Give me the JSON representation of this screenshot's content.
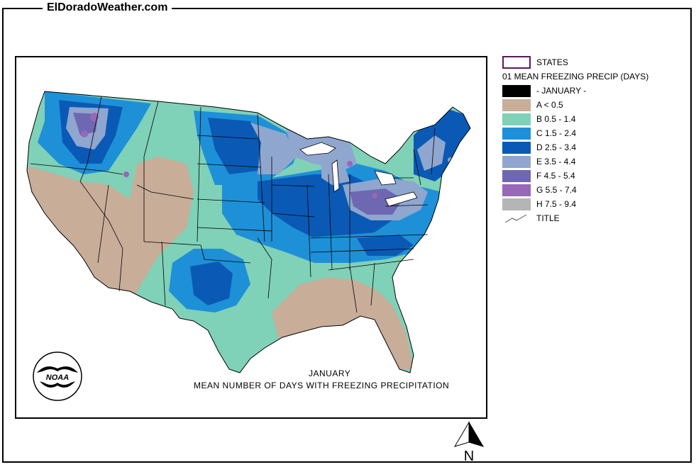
{
  "site": {
    "title": "ElDoradoWeather.com"
  },
  "map": {
    "caption_month": "JANUARY",
    "caption_title": "MEAN NUMBER OF DAYS WITH FREEZING PRECIPITATION",
    "logo_text": "NOAA"
  },
  "legend": {
    "states_label": "STATES",
    "heading": "01 MEAN FREEZING PRECIP (DAYS)",
    "items": [
      {
        "label": "- JANUARY -",
        "color": "#000000"
      },
      {
        "label": "A < 0.5",
        "color": "#c8ad99"
      },
      {
        "label": "B 0.5 - 1.4",
        "color": "#7fd1b7"
      },
      {
        "label": "C 1.5 - 2.4",
        "color": "#1e90d8"
      },
      {
        "label": "D 2.5 - 3.4",
        "color": "#0a5ab5"
      },
      {
        "label": "E 3.5 - 4.4",
        "color": "#8fa6cf"
      },
      {
        "label": "F 4.5 - 5.4",
        "color": "#6e68b3"
      },
      {
        "label": "G 5.5 - 7.4",
        "color": "#9868b8"
      },
      {
        "label": "H 7.5 - 9.4",
        "color": "#b5b5b5"
      }
    ],
    "title_label": "TITLE"
  },
  "north_label": "N"
}
